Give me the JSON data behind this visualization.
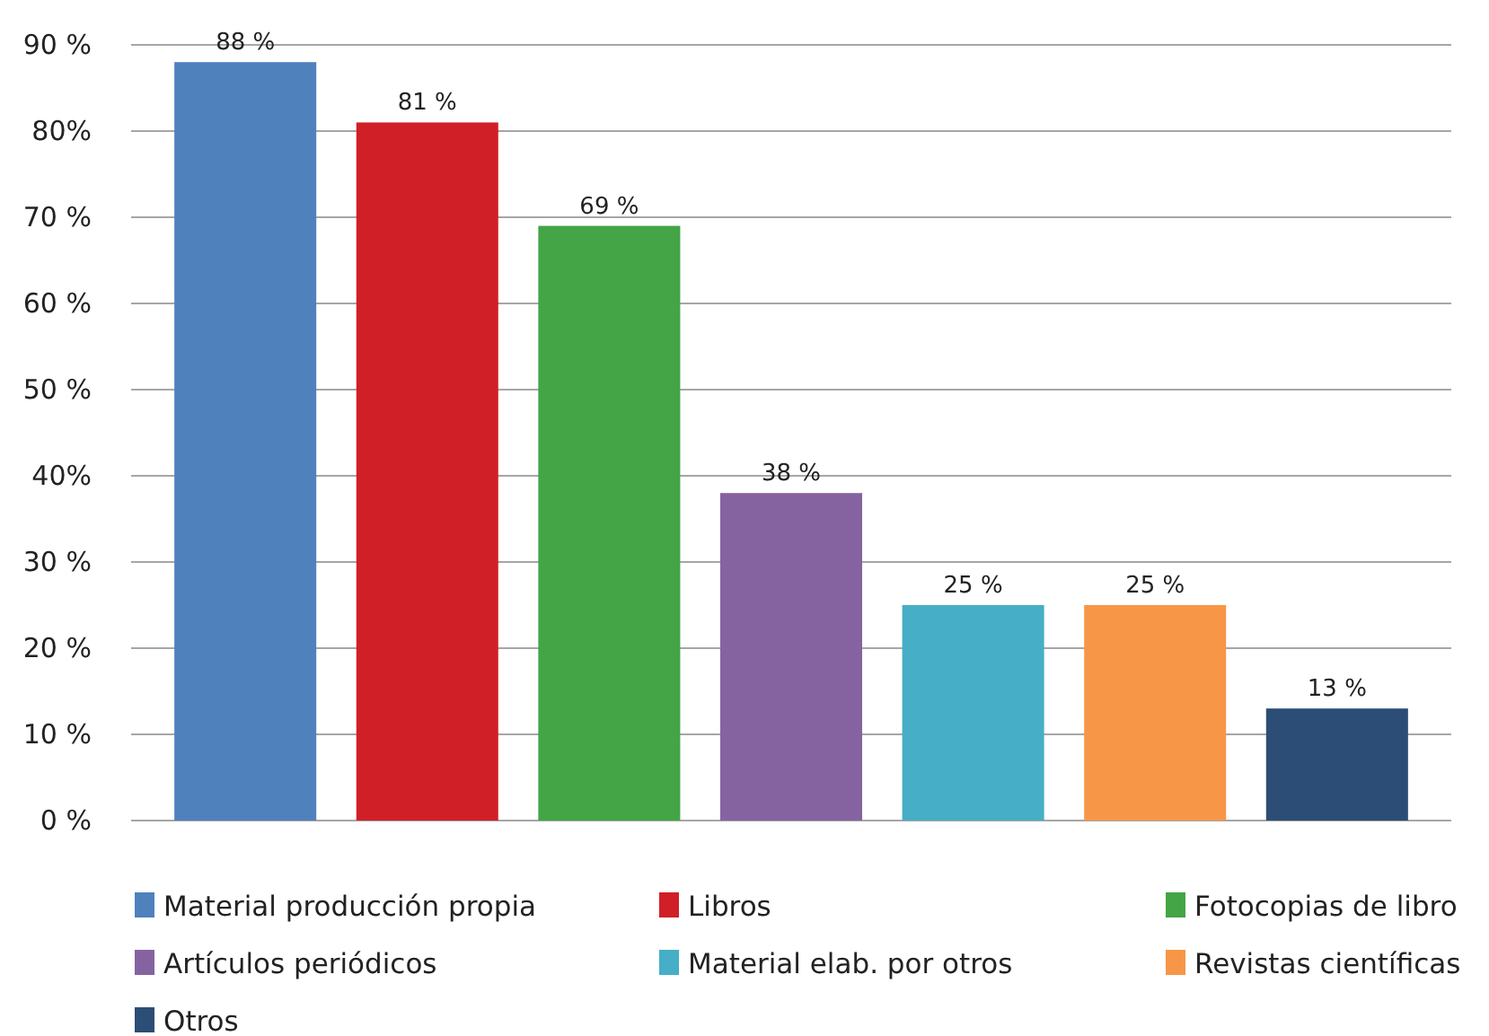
{
  "chart_data": {
    "type": "bar",
    "categories": [
      null,
      null,
      null,
      null,
      null,
      null,
      null
    ],
    "series": [
      {
        "name": "Material producción propia",
        "color": "#4f81bd",
        "values": [
          88,
          null,
          null,
          null,
          null,
          null,
          null
        ],
        "value_labels": [
          "88 %",
          null,
          null,
          null,
          null,
          null,
          null
        ]
      },
      {
        "name": "Libros",
        "color": "#d11f27",
        "values": [
          null,
          81,
          null,
          null,
          null,
          null,
          null
        ],
        "value_labels": [
          null,
          "81 %",
          null,
          null,
          null,
          null,
          null
        ]
      },
      {
        "name": "Fotocopias de libro",
        "color": "#43a545",
        "values": [
          null,
          null,
          69,
          null,
          null,
          null,
          null
        ],
        "value_labels": [
          null,
          null,
          "69 %",
          null,
          null,
          null,
          null
        ]
      },
      {
        "name": "Artículos periódicos",
        "color": "#8563a0",
        "values": [
          null,
          null,
          null,
          38,
          null,
          null,
          null
        ],
        "value_labels": [
          null,
          null,
          null,
          "38 %",
          null,
          null,
          null
        ]
      },
      {
        "name": "Material elab. por otros",
        "color": "#46aec6",
        "values": [
          null,
          null,
          null,
          null,
          25,
          null,
          null
        ],
        "value_labels": [
          null,
          null,
          null,
          null,
          "25 %",
          null,
          null
        ]
      },
      {
        "name": "Revistas científicas",
        "color": "#f79646",
        "values": [
          null,
          null,
          null,
          null,
          null,
          25,
          null
        ],
        "value_labels": [
          null,
          null,
          null,
          null,
          null,
          "25 %",
          null
        ]
      },
      {
        "name": "Otros",
        "color": "#2c4d75",
        "values": [
          null,
          null,
          null,
          null,
          null,
          null,
          13
        ],
        "value_labels": [
          null,
          null,
          null,
          null,
          null,
          null,
          "13 %"
        ]
      }
    ],
    "ylim": [
      0,
      90
    ],
    "yticks": [
      {
        "value": 0,
        "label": "0 %"
      },
      {
        "value": 10,
        "label": "10 %"
      },
      {
        "value": 20,
        "label": "20 %"
      },
      {
        "value": 30,
        "label": "30 %"
      },
      {
        "value": 40,
        "label": "40%"
      },
      {
        "value": 50,
        "label": "50 %"
      },
      {
        "value": 60,
        "label": "60 %"
      },
      {
        "value": 70,
        "label": "70 %"
      },
      {
        "value": 80,
        "label": "80%"
      },
      {
        "value": 90,
        "label": "90 %"
      }
    ],
    "grid": "y",
    "legend": "bottom",
    "tick_labels": "y"
  }
}
